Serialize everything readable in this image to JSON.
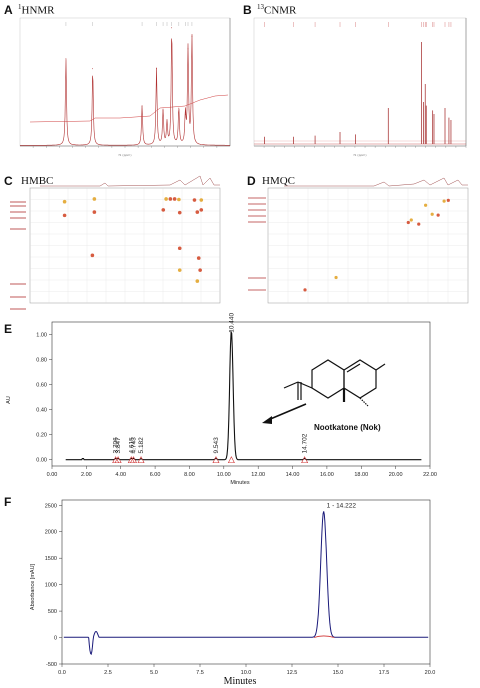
{
  "panels": {
    "A": {
      "letter": "A",
      "title_sup": "1",
      "title": "HNMR"
    },
    "B": {
      "letter": "B",
      "title_sup": "13",
      "title": "CNMR"
    },
    "C": {
      "letter": "C",
      "title": "HMBC"
    },
    "D": {
      "letter": "D",
      "title": "HMQC"
    },
    "E": {
      "letter": "E"
    },
    "F": {
      "letter": "F"
    }
  },
  "chart_data": [
    {
      "id": "A",
      "type": "line",
      "title": "1HNMR",
      "xlabel": "f1 (ppm)",
      "xlim": [
        7.5,
        -0.5
      ],
      "x_reversed": true,
      "peaks": [
        {
          "x": 5.75,
          "y": 0.7
        },
        {
          "x": 2.85,
          "y": 0.32
        },
        {
          "x": 2.3,
          "y": 0.62
        },
        {
          "x": 2.05,
          "y": 0.28
        },
        {
          "x": 1.9,
          "y": 0.18
        },
        {
          "x": 1.72,
          "y": 0.95
        },
        {
          "x": 1.45,
          "y": 0.3
        },
        {
          "x": 1.2,
          "y": 0.25
        },
        {
          "x": 1.1,
          "y": 0.78
        },
        {
          "x": 0.95,
          "y": 0.88
        },
        {
          "x": 4.73,
          "y": 0.62
        }
      ]
    },
    {
      "id": "B",
      "type": "line",
      "title": "13CNMR",
      "xlabel": "f1 (ppm)",
      "xlim": [
        210,
        0
      ],
      "x_reversed": true,
      "peaks": [
        {
          "x": 199.7,
          "y": 0.06
        },
        {
          "x": 170.8,
          "y": 0.06
        },
        {
          "x": 149.5,
          "y": 0.07
        },
        {
          "x": 124.8,
          "y": 0.1
        },
        {
          "x": 109.3,
          "y": 0.08
        },
        {
          "x": 77.0,
          "y": 0.3
        },
        {
          "x": 44.0,
          "y": 0.85
        },
        {
          "x": 42.1,
          "y": 0.35
        },
        {
          "x": 40.4,
          "y": 0.5
        },
        {
          "x": 39.4,
          "y": 0.32
        },
        {
          "x": 33.0,
          "y": 0.28
        },
        {
          "x": 31.7,
          "y": 0.25
        },
        {
          "x": 20.8,
          "y": 0.3
        },
        {
          "x": 16.9,
          "y": 0.22
        },
        {
          "x": 14.9,
          "y": 0.2
        }
      ]
    },
    {
      "id": "C",
      "type": "scatter",
      "title": "HMBC",
      "points": [
        [
          5.78,
          25
        ],
        [
          5.78,
          50
        ],
        [
          4.73,
          44
        ],
        [
          4.73,
          20
        ],
        [
          4.8,
          123
        ],
        [
          2.3,
          40
        ],
        [
          2.2,
          20
        ],
        [
          2.05,
          20
        ],
        [
          1.9,
          20
        ],
        [
          1.75,
          21
        ],
        [
          1.72,
          45
        ],
        [
          1.72,
          110
        ],
        [
          1.72,
          150
        ],
        [
          1.2,
          22
        ],
        [
          1.1,
          44
        ],
        [
          1.1,
          170
        ],
        [
          1.05,
          128
        ],
        [
          1.0,
          150
        ],
        [
          0.96,
          22
        ],
        [
          0.96,
          40
        ]
      ]
    },
    {
      "id": "D",
      "type": "scatter",
      "title": "HMQC",
      "points": [
        [
          5.76,
          124
        ],
        [
          4.72,
          109
        ],
        [
          2.3,
          42
        ],
        [
          2.2,
          39
        ],
        [
          1.95,
          44
        ],
        [
          1.72,
          21
        ],
        [
          1.3,
          33
        ],
        [
          1.1,
          16
        ],
        [
          0.96,
          15
        ],
        [
          1.5,
          32
        ]
      ]
    },
    {
      "id": "E",
      "type": "line",
      "xlabel": "Minutes",
      "ylabel": "AU",
      "xlim": [
        0,
        22
      ],
      "ylim": [
        -0.05,
        1.1
      ],
      "x_ticks": [
        "0.00",
        "2.00",
        "4.00",
        "6.00",
        "8.00",
        "10.00",
        "12.00",
        "14.00",
        "16.00",
        "18.00",
        "20.00",
        "22.00"
      ],
      "y_ticks": [
        "0.00",
        "0.20",
        "0.40",
        "0.60",
        "0.80",
        "1.00"
      ],
      "peak_labels": [
        "3.706",
        "3.847",
        "4.615",
        "4.743",
        "5.182",
        "9.543",
        "10.440",
        "14.702"
      ],
      "peaks": [
        {
          "x": 3.706,
          "y": 0.01
        },
        {
          "x": 3.847,
          "y": 0.01
        },
        {
          "x": 4.615,
          "y": 0.01
        },
        {
          "x": 4.743,
          "y": 0.01
        },
        {
          "x": 5.182,
          "y": 0.008
        },
        {
          "x": 9.543,
          "y": 0.012
        },
        {
          "x": 10.44,
          "y": 1.03
        },
        {
          "x": 14.702,
          "y": 0.01
        }
      ],
      "compound_label": "Nootkatone (Nok)"
    },
    {
      "id": "F",
      "type": "line",
      "xlabel": "Minutes",
      "ylabel": "Absorbance [mAU]",
      "xlim": [
        0,
        20
      ],
      "ylim": [
        -500,
        2600
      ],
      "x_ticks": [
        "0.0",
        "2.5",
        "5.0",
        "7.5",
        "10.0",
        "12.5",
        "15.0",
        "17.5",
        "20.0"
      ],
      "y_ticks": [
        "-500",
        "0",
        "500",
        "1000",
        "1500",
        "2000",
        "2500"
      ],
      "peak_label": "1 - 14.222",
      "peaks": [
        {
          "x": 14.222,
          "y": 2380
        }
      ]
    }
  ]
}
